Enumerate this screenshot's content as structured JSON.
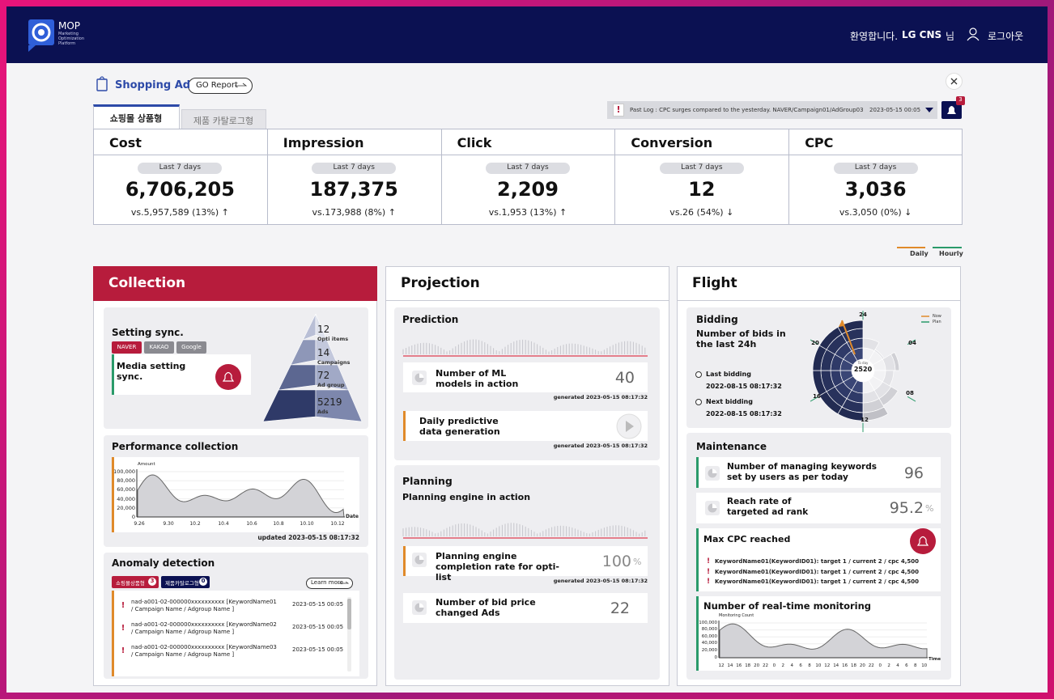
{
  "header": {
    "logo": "MOP",
    "logo_subtitle": "Marketing Optimization Platform",
    "welcome": "환영합니다.",
    "user": "LG CNS",
    "honorific": "님",
    "logout": "로그아웃"
  },
  "toolbar": {
    "title": "Shopping Ad",
    "go_report": "GO Report",
    "tabs": [
      "쇼핑몰 상품형",
      "제품 카탈로그형"
    ],
    "alert_icon": "!",
    "past_log": "Past Log : CPC surges compared to the yesterday. NAVER/Campaign01/AdGroup03",
    "past_log_date": "2023-05-15 00:05",
    "notification_count": 3
  },
  "kpis": [
    {
      "label": "Cost",
      "period": "Last 7 days",
      "value": "6,706,205",
      "compare": "vs.5,957,589 (13%) ↑"
    },
    {
      "label": "Impression",
      "period": "Last 7 days",
      "value": "187,375",
      "compare": "vs.173,988 (8%) ↑"
    },
    {
      "label": "Click",
      "period": "Last 7 days",
      "value": "2,209",
      "compare": "vs.1,953 (13%) ↑"
    },
    {
      "label": "Conversion",
      "period": "Last 7 days",
      "value": "12",
      "compare": "vs.26 (54%) ↓"
    },
    {
      "label": "CPC",
      "period": "Last 7 days",
      "value": "3,036",
      "compare": "vs.3,050 (0%) ↓"
    }
  ],
  "trend_legend": [
    "Daily",
    "Hourly"
  ],
  "collection": {
    "title": "Collection",
    "setting_sync": {
      "title": "Setting sync.",
      "media": [
        "NAVER",
        "KAKAO",
        "Google"
      ],
      "status": "Media setting sync.",
      "pyramid": [
        {
          "value": 12,
          "label": "Opti items"
        },
        {
          "value": 14,
          "label": "Campaigns"
        },
        {
          "value": 72,
          "label": "Ad group"
        },
        {
          "value": 5219,
          "label": "Ads"
        }
      ]
    },
    "performance": {
      "title": "Performance collection",
      "y_label": "Amount",
      "yticks": [
        "100,000",
        "80,000",
        "60,000",
        "40,000",
        "20,000",
        "0"
      ],
      "xticks": [
        "9.26",
        "9.30",
        "10.2",
        "10.4",
        "10.6",
        "10.8",
        "10.10",
        "10.12"
      ],
      "x_label": "Date",
      "updated": "updated 2023-05-15 08:17:32"
    },
    "anomaly": {
      "title": "Anomaly detection",
      "tabs": [
        {
          "label": "쇼핑몰상품형",
          "count": 3
        },
        {
          "label": "제품카탈로그형",
          "count": 0
        }
      ],
      "learn_more": "Learn more",
      "rows": [
        {
          "text": "nad-a001-02-000000xxxxxxxxxx [KeywordName01 / Campaign Name / Adgroup Name ]",
          "date": "2023-05-15 00:05"
        },
        {
          "text": "nad-a001-02-000000xxxxxxxxxx [KeywordName02 / Campaign Name / Adgroup Name ]",
          "date": "2023-05-15 00:05"
        },
        {
          "text": "nad-a001-02-000000xxxxxxxxxx [KeywordName03 / Campaign Name / Adgroup Name ]",
          "date": "2023-05-15 00:05"
        }
      ]
    }
  },
  "projection": {
    "title": "Projection",
    "prediction": {
      "title": "Prediction",
      "ml_models": {
        "label": "Number of ML models in action",
        "value": 40,
        "generated": "generated 2023-05-15 08:17:32"
      },
      "daily": {
        "label": "Daily predictive data generation",
        "generated": "generated 2023-05-15 08:17:32"
      }
    },
    "planning": {
      "title": "Planning",
      "subtitle": "Planning engine in action",
      "completion": {
        "label": "Planning engine completion rate for opti-list",
        "value": 100,
        "unit": "%",
        "generated": "generated 2023-05-15 08:17:32"
      },
      "bid_changes": {
        "label": "Number of bid price changed Ads",
        "value": 22
      }
    }
  },
  "flight": {
    "title": "Flight",
    "bidding": {
      "title": "Bidding",
      "subtitle": "Number of bids in the last 24h",
      "last_label": "Last bidding",
      "last_date": "2022-08-15 08:17:32",
      "next_label": "Next bidding",
      "next_date": "2022-08-15 08:17:32",
      "clock_labels": [
        "24",
        "04",
        "08",
        "12",
        "16",
        "20"
      ],
      "center_label": "To day",
      "center_value": 2520,
      "legend": [
        "Now",
        "Plan"
      ]
    },
    "maintenance": {
      "title": "Maintenance",
      "keywords": {
        "label": "Number of managing keywords set by users as per today",
        "value": 96
      },
      "reach": {
        "label": "Reach rate of targeted ad rank",
        "value": 95.2,
        "unit": "%"
      },
      "max_cpc": {
        "title": "Max CPC reached",
        "items": [
          "KeywordName01(KeywordID01): target 1 / current 2 / cpc 4,500",
          "KeywordName01(KeywordID01): target 1 / current 2 / cpc 4,500",
          "KeywordName01(KeywordID01): target 1 / current 2 / cpc 4,500"
        ]
      },
      "monitoring": {
        "title": "Number of real-time monitoring",
        "y_label": "Monitoring Count",
        "yticks": [
          "100,000",
          "80,000",
          "60,000",
          "40,000",
          "20,000",
          "0"
        ],
        "xticks": [
          "12",
          "14",
          "16",
          "18",
          "20",
          "22",
          "0",
          "2",
          "4",
          "6",
          "8",
          "10",
          "12",
          "14",
          "16",
          "18",
          "20",
          "22",
          "0",
          "2",
          "4",
          "6",
          "8",
          "10"
        ],
        "x_label": "Time"
      }
    }
  }
}
